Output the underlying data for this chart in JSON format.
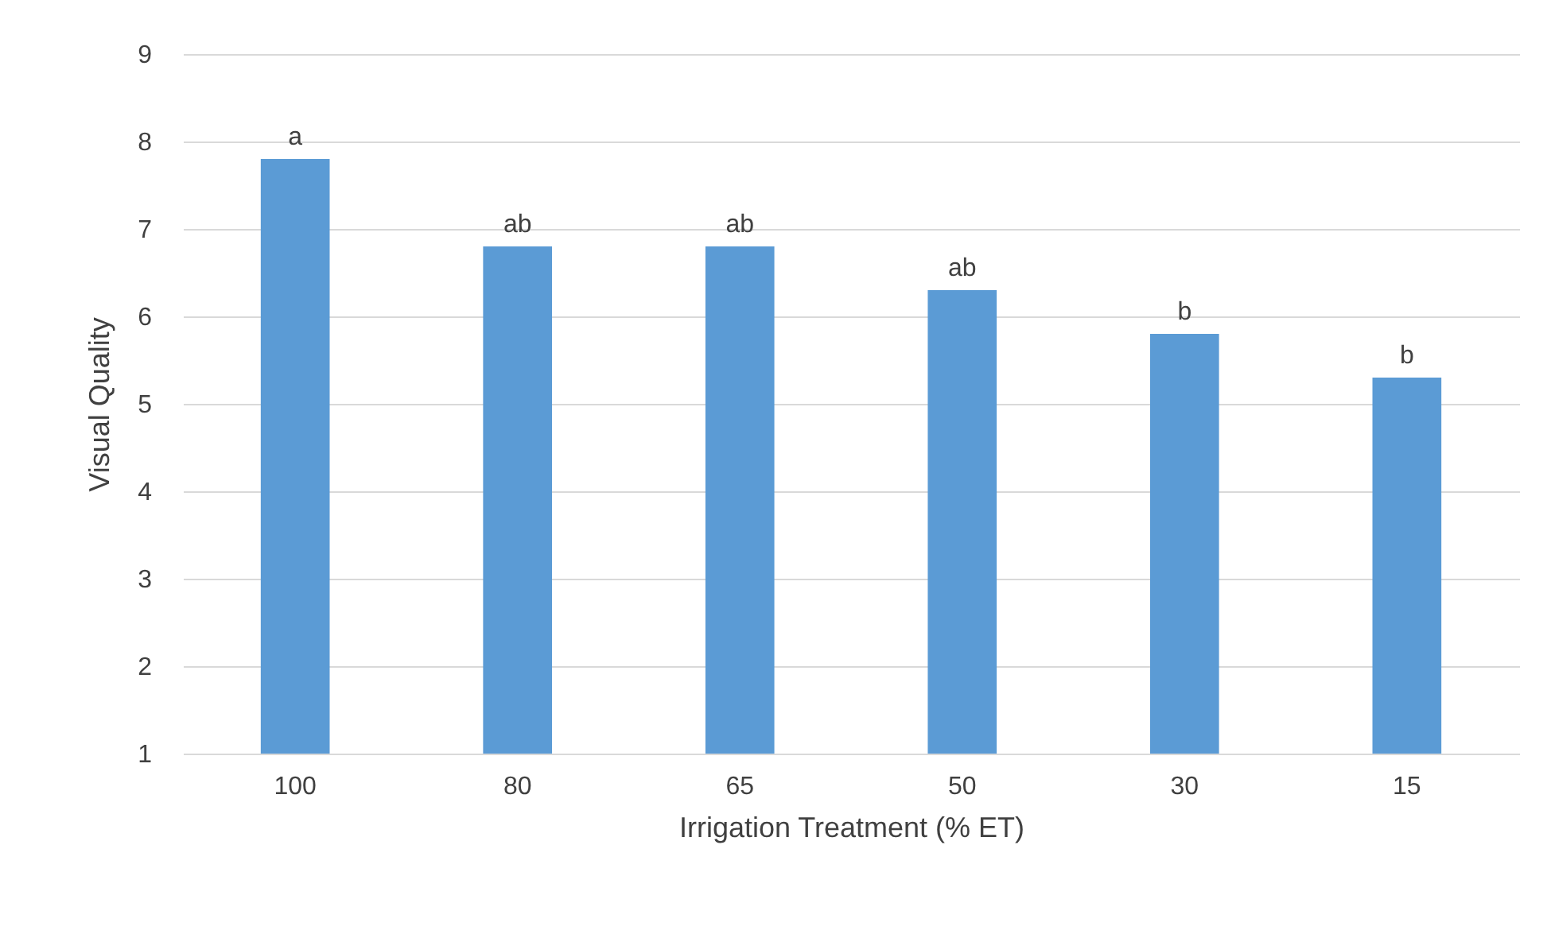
{
  "chart_data": {
    "type": "bar",
    "xlabel": "Irrigation Treatment (% ET)",
    "ylabel": "Visual Quality",
    "categories": [
      "100",
      "80",
      "65",
      "50",
      "30",
      "15"
    ],
    "values": [
      7.8,
      6.8,
      6.8,
      6.3,
      5.8,
      5.3
    ],
    "value_labels": [
      "a",
      "ab",
      "ab",
      "ab",
      "b",
      "b"
    ],
    "color": "#5b9bd5",
    "ylim": [
      1,
      9
    ],
    "yticks": [
      1,
      2,
      3,
      4,
      5,
      6,
      7,
      8,
      9
    ],
    "grid": "y"
  }
}
